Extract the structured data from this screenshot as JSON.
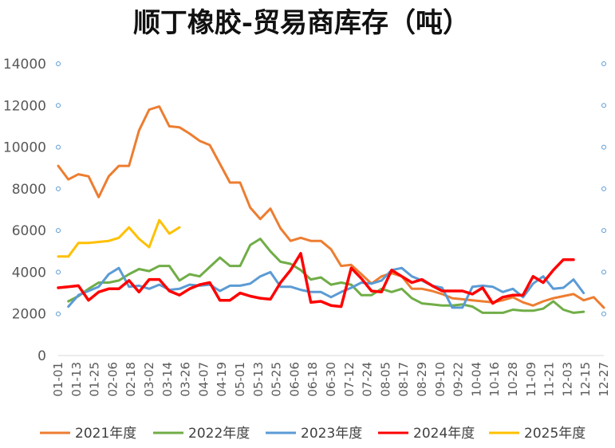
{
  "chart_data": {
    "type": "line",
    "title": "顺丁橡胶-贸易商库存（吨）",
    "xlabel": "",
    "ylabel": "",
    "ylim": [
      0,
      14000
    ],
    "yticks": [
      "0",
      "2000",
      "4000",
      "6000",
      "8000",
      "10000",
      "12000",
      "14000"
    ],
    "grid": false,
    "legend_position": "bottom",
    "x_tick_labels": [
      "01-01",
      "01-13",
      "01-25",
      "02-06",
      "02-18",
      "03-02",
      "03-14",
      "03-26",
      "04-07",
      "04-19",
      "05-01",
      "05-13",
      "05-25",
      "06-06",
      "06-18",
      "06-30",
      "07-12",
      "07-24",
      "08-05",
      "08-17",
      "08-29",
      "09-10",
      "09-22",
      "10-04",
      "10-16",
      "10-28",
      "11-09",
      "11-21",
      "12-03",
      "12-15",
      "12-27"
    ],
    "series": [
      {
        "name": "2021年度",
        "color": "#ED7D31",
        "values": [
          9100,
          8450,
          8700,
          8600,
          7600,
          8600,
          9100,
          9100,
          10800,
          11800,
          11950,
          11000,
          10950,
          10650,
          10300,
          10100,
          9200,
          8300,
          8300,
          7100,
          6550,
          7050,
          6100,
          5500,
          5650,
          5500,
          5500,
          5100,
          4300,
          4350,
          3900,
          3450,
          3800,
          3950,
          3800,
          3200,
          3200,
          3100,
          2950,
          2750,
          2700,
          2650,
          2600,
          2550,
          2650,
          2800,
          2550,
          2400,
          2600,
          2750,
          2850,
          2950,
          2650,
          2800,
          2300
        ]
      },
      {
        "name": "2022年度",
        "color": "#70AD47",
        "values": [
          null,
          2600,
          2850,
          3200,
          3500,
          3500,
          3600,
          3900,
          4150,
          4050,
          4300,
          4300,
          3600,
          3900,
          3800,
          4250,
          4700,
          4300,
          4300,
          5300,
          5600,
          5000,
          4500,
          4400,
          4100,
          3650,
          3750,
          3400,
          3500,
          3400,
          2900,
          2900,
          3200,
          3050,
          3200,
          2750,
          2500,
          2450,
          2400,
          2400,
          2450,
          2350,
          2050,
          2050,
          2050,
          2200,
          2150,
          2150,
          2250,
          2600,
          2200,
          2050,
          2100
        ]
      },
      {
        "name": "2023年度",
        "color": "#5B9BD5",
        "values": [
          null,
          2350,
          2900,
          3100,
          3300,
          3900,
          4200,
          3300,
          3350,
          3200,
          3400,
          3150,
          3200,
          3400,
          3350,
          3400,
          3100,
          3350,
          3350,
          3450,
          3800,
          4000,
          3300,
          3300,
          3150,
          3050,
          3050,
          2800,
          3050,
          3250,
          3500,
          3450,
          3600,
          4100,
          4200,
          3800,
          3600,
          3350,
          3250,
          2300,
          2300,
          3300,
          3350,
          3300,
          3050,
          3200,
          2800,
          3450,
          3800,
          3200,
          3250,
          3650,
          3000
        ]
      },
      {
        "name": "2024年度",
        "color": "#FF0000",
        "values": [
          3250,
          3300,
          3350,
          2650,
          3050,
          3200,
          3200,
          3600,
          3050,
          3650,
          3650,
          3100,
          2900,
          3200,
          3400,
          3500,
          2650,
          2650,
          3000,
          2850,
          2750,
          2700,
          3500,
          4100,
          4900,
          2550,
          2600,
          2400,
          2350,
          4200,
          3700,
          3100,
          3050,
          4100,
          3800,
          3500,
          3650,
          3350,
          3100,
          3100,
          3100,
          2950,
          3250,
          2500,
          2800,
          2900,
          2900,
          3800,
          3500,
          4100,
          4600,
          4600
        ]
      },
      {
        "name": "2025年度",
        "color": "#FFC000",
        "values": [
          4750,
          4750,
          5400,
          5400,
          5450,
          5500,
          5650,
          6150,
          5600,
          5200,
          6500,
          5850,
          6150
        ]
      }
    ]
  }
}
